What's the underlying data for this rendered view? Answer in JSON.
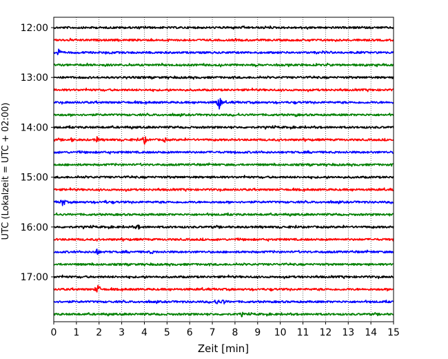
{
  "chart_data": {
    "type": "line",
    "title": "",
    "xlabel": "Zeit  [min]",
    "ylabel": "UTC (Lokalzeit = UTC + 02:00)",
    "xlim": [
      0,
      15
    ],
    "x_ticks": [
      "0",
      "1",
      "2",
      "3",
      "4",
      "5",
      "6",
      "7",
      "8",
      "9",
      "10",
      "11",
      "12",
      "13",
      "14",
      "15"
    ],
    "y_ticks": [
      "12:00",
      "13:00",
      "14:00",
      "15:00",
      "16:00",
      "17:00"
    ],
    "grid": "vertical dotted",
    "series": [
      {
        "start": "12:00",
        "color": "#000000",
        "events": []
      },
      {
        "start": "12:15",
        "color": "#ff0000",
        "events": []
      },
      {
        "start": "12:30",
        "color": "#0000ff",
        "events": [
          {
            "t": 0.2,
            "amp": 7
          }
        ]
      },
      {
        "start": "12:45",
        "color": "#008000",
        "events": []
      },
      {
        "start": "13:00",
        "color": "#000000",
        "events": []
      },
      {
        "start": "13:15",
        "color": "#ff0000",
        "events": []
      },
      {
        "start": "13:30",
        "color": "#0000ff",
        "events": [
          {
            "t": 7.3,
            "amp": 11
          }
        ]
      },
      {
        "start": "13:45",
        "color": "#008000",
        "events": [
          {
            "t": 10.7,
            "amp": 3
          }
        ]
      },
      {
        "start": "14:00",
        "color": "#000000",
        "events": []
      },
      {
        "start": "14:15",
        "color": "#ff0000",
        "events": [
          {
            "t": 0.8,
            "amp": 4
          },
          {
            "t": 1.9,
            "amp": 5
          },
          {
            "t": 4.0,
            "amp": 7
          },
          {
            "t": 4.9,
            "amp": 4
          }
        ]
      },
      {
        "start": "14:30",
        "color": "#0000ff",
        "events": []
      },
      {
        "start": "14:45",
        "color": "#008000",
        "events": []
      },
      {
        "start": "15:00",
        "color": "#000000",
        "events": []
      },
      {
        "start": "15:15",
        "color": "#ff0000",
        "events": []
      },
      {
        "start": "15:30",
        "color": "#0000ff",
        "events": [
          {
            "t": 0.4,
            "amp": 7
          },
          {
            "t": 2.3,
            "amp": 3
          }
        ]
      },
      {
        "start": "15:45",
        "color": "#008000",
        "events": []
      },
      {
        "start": "16:00",
        "color": "#000000",
        "events": [
          {
            "t": 3.7,
            "amp": 5
          }
        ]
      },
      {
        "start": "16:15",
        "color": "#ff0000",
        "events": []
      },
      {
        "start": "16:30",
        "color": "#0000ff",
        "events": [
          {
            "t": 1.9,
            "amp": 6
          },
          {
            "t": 4.3,
            "amp": 4
          }
        ]
      },
      {
        "start": "16:45",
        "color": "#008000",
        "events": []
      },
      {
        "start": "17:00",
        "color": "#000000",
        "events": []
      },
      {
        "start": "17:15",
        "color": "#ff0000",
        "events": [
          {
            "t": 1.95,
            "amp": 8
          }
        ]
      },
      {
        "start": "17:30",
        "color": "#0000ff",
        "events": [
          {
            "t": 7.2,
            "amp": 6
          },
          {
            "t": 7.5,
            "amp": 5
          }
        ]
      },
      {
        "start": "17:45",
        "color": "#008000",
        "events": [
          {
            "t": 8.3,
            "amp": 4
          }
        ]
      }
    ]
  }
}
